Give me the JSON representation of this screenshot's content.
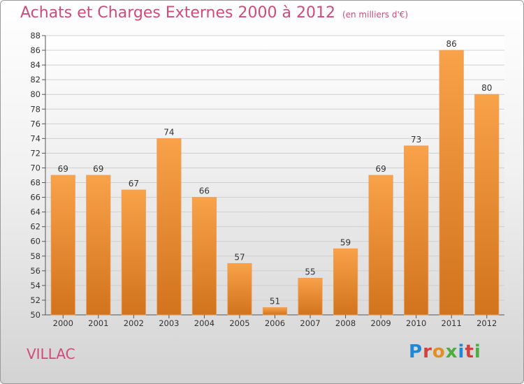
{
  "header": {
    "title": "Achats et Charges Externes 2000 à 2012",
    "subtitle": "(en milliers d'€)"
  },
  "footer": {
    "commune": "VILLAC",
    "logo": "Proxiti"
  },
  "colors": {
    "title": "#d04a7a",
    "bar_light": "#f8a24a",
    "bar_dark": "#d2731d",
    "logo_letters": [
      "#1e88d6",
      "#d4413d",
      "#e38f1f",
      "#4cae3b",
      "#1e88d6",
      "#d4413d",
      "#4cae3b"
    ]
  },
  "chart_data": {
    "type": "bar",
    "title": "Achats et Charges Externes 2000 à 2012",
    "subtitle": "(en milliers d'€)",
    "categories": [
      "2000",
      "2001",
      "2002",
      "2003",
      "2004",
      "2005",
      "2006",
      "2007",
      "2008",
      "2009",
      "2010",
      "2011",
      "2012"
    ],
    "values": [
      69,
      69,
      67,
      74,
      66,
      57,
      51,
      55,
      59,
      69,
      73,
      86,
      80
    ],
    "ylim": [
      50,
      88
    ],
    "yticks": [
      50,
      52,
      54,
      56,
      58,
      60,
      62,
      64,
      66,
      68,
      70,
      72,
      74,
      76,
      78,
      80,
      82,
      84,
      86,
      88
    ],
    "grid": true,
    "data_labels": true
  }
}
